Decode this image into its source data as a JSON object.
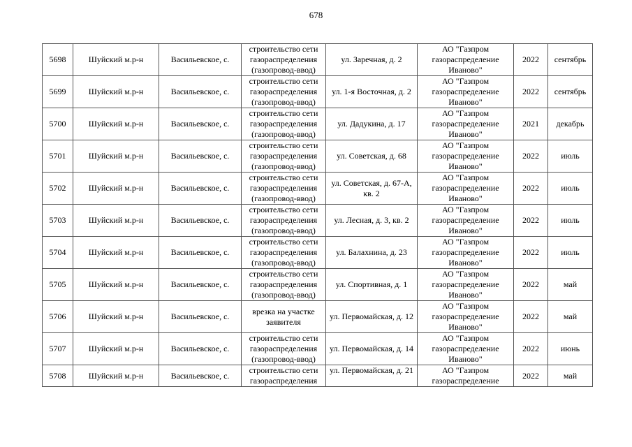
{
  "page_number": "678",
  "rows": [
    {
      "num": "5698",
      "district": "Шуйский м.р-н",
      "locality": "Васильевское, с.",
      "work": "строительство сети газораспределения (газопровод-ввод)",
      "address": "ул. Заречная, д. 2",
      "org": "АО \"Газпром газораспределение Иваново\"",
      "year": "2022",
      "month": "сентябрь"
    },
    {
      "num": "5699",
      "district": "Шуйский м.р-н",
      "locality": "Васильевское, с.",
      "work": "строительство сети газораспределения (газопровод-ввод)",
      "address": "ул. 1-я Восточная, д. 2",
      "org": "АО \"Газпром газораспределение Иваново\"",
      "year": "2022",
      "month": "сентябрь"
    },
    {
      "num": "5700",
      "district": "Шуйский м.р-н",
      "locality": "Васильевское, с.",
      "work": "строительство сети газораспределения (газопровод-ввод)",
      "address": "ул. Дадукина, д. 17",
      "org": "АО \"Газпром газораспределение Иваново\"",
      "year": "2021",
      "month": "декабрь"
    },
    {
      "num": "5701",
      "district": "Шуйский м.р-н",
      "locality": "Васильевское, с.",
      "work": "строительство сети газораспределения (газопровод-ввод)",
      "address": "ул. Советская, д. 68",
      "org": "АО \"Газпром газораспределение Иваново\"",
      "year": "2022",
      "month": "июль"
    },
    {
      "num": "5702",
      "district": "Шуйский м.р-н",
      "locality": "Васильевское, с.",
      "work": "строительство сети газораспределения (газопровод-ввод)",
      "address": "ул. Советская, д. 67-А, кв. 2",
      "org": "АО \"Газпром газораспределение Иваново\"",
      "year": "2022",
      "month": "июль"
    },
    {
      "num": "5703",
      "district": "Шуйский м.р-н",
      "locality": "Васильевское, с.",
      "work": "строительство сети газораспределения (газопровод-ввод)",
      "address": "ул. Лесная, д. 3, кв. 2",
      "org": "АО \"Газпром газораспределение Иваново\"",
      "year": "2022",
      "month": "июль"
    },
    {
      "num": "5704",
      "district": "Шуйский м.р-н",
      "locality": "Васильевское, с.",
      "work": "строительство сети газораспределения (газопровод-ввод)",
      "address": "ул. Балахнина, д. 23",
      "org": "АО \"Газпром газораспределение Иваново\"",
      "year": "2022",
      "month": "июль"
    },
    {
      "num": "5705",
      "district": "Шуйский м.р-н",
      "locality": "Васильевское, с.",
      "work": "строительство сети газораспределения (газопровод-ввод)",
      "address": "ул. Спортивная, д. 1",
      "org": "АО \"Газпром газораспределение Иваново\"",
      "year": "2022",
      "month": "май"
    },
    {
      "num": "5706",
      "district": "Шуйский м.р-н",
      "locality": "Васильевское, с.",
      "work": "врезка на участке заявителя",
      "address": "ул. Первомайская, д. 12",
      "org": "АО \"Газпром газораспределение Иваново\"",
      "year": "2022",
      "month": "май"
    },
    {
      "num": "5707",
      "district": "Шуйский м.р-н",
      "locality": "Васильевское, с.",
      "work": "строительство сети газораспределения (газопровод-ввод)",
      "address": "ул. Первомайская, д. 14",
      "org": "АО \"Газпром газораспределение Иваново\"",
      "year": "2022",
      "month": "июнь"
    },
    {
      "num": "5708",
      "district": "Шуйский м.р-н",
      "locality": "Васильевское, с.",
      "work": "строительство сети газораспределения",
      "address": "ул. Первомайская, д. 21",
      "org": "АО \"Газпром газораспределение",
      "year": "2022",
      "month": "май"
    }
  ]
}
